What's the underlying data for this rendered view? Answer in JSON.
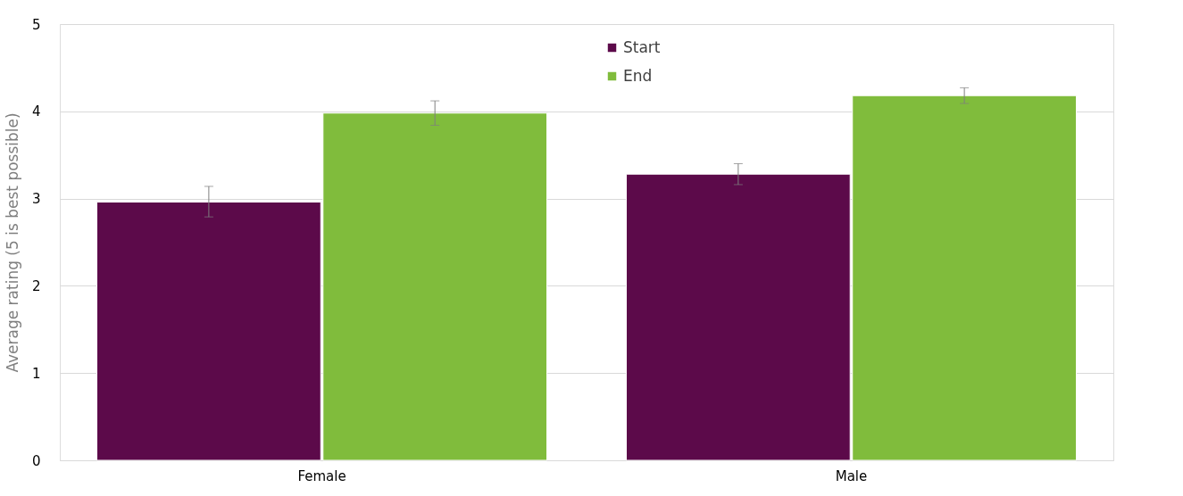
{
  "chart_data": {
    "type": "bar",
    "ylabel": "Average rating (5 is best possible)",
    "categories": [
      "Female",
      "Male"
    ],
    "series": [
      {
        "name": "Start",
        "color": "#5c0a4a",
        "values": [
          2.96,
          3.28
        ],
        "errors": [
          [
            2.79,
            3.14
          ],
          [
            3.16,
            3.4
          ]
        ]
      },
      {
        "name": "End",
        "color": "#80bc3c",
        "values": [
          3.98,
          4.18
        ],
        "errors": [
          [
            3.84,
            4.12
          ],
          [
            4.09,
            4.27
          ]
        ]
      }
    ],
    "ylim": [
      0,
      5
    ],
    "yticks": [
      0,
      1,
      2,
      3,
      4,
      5
    ],
    "grid": "y",
    "legend": "top"
  }
}
